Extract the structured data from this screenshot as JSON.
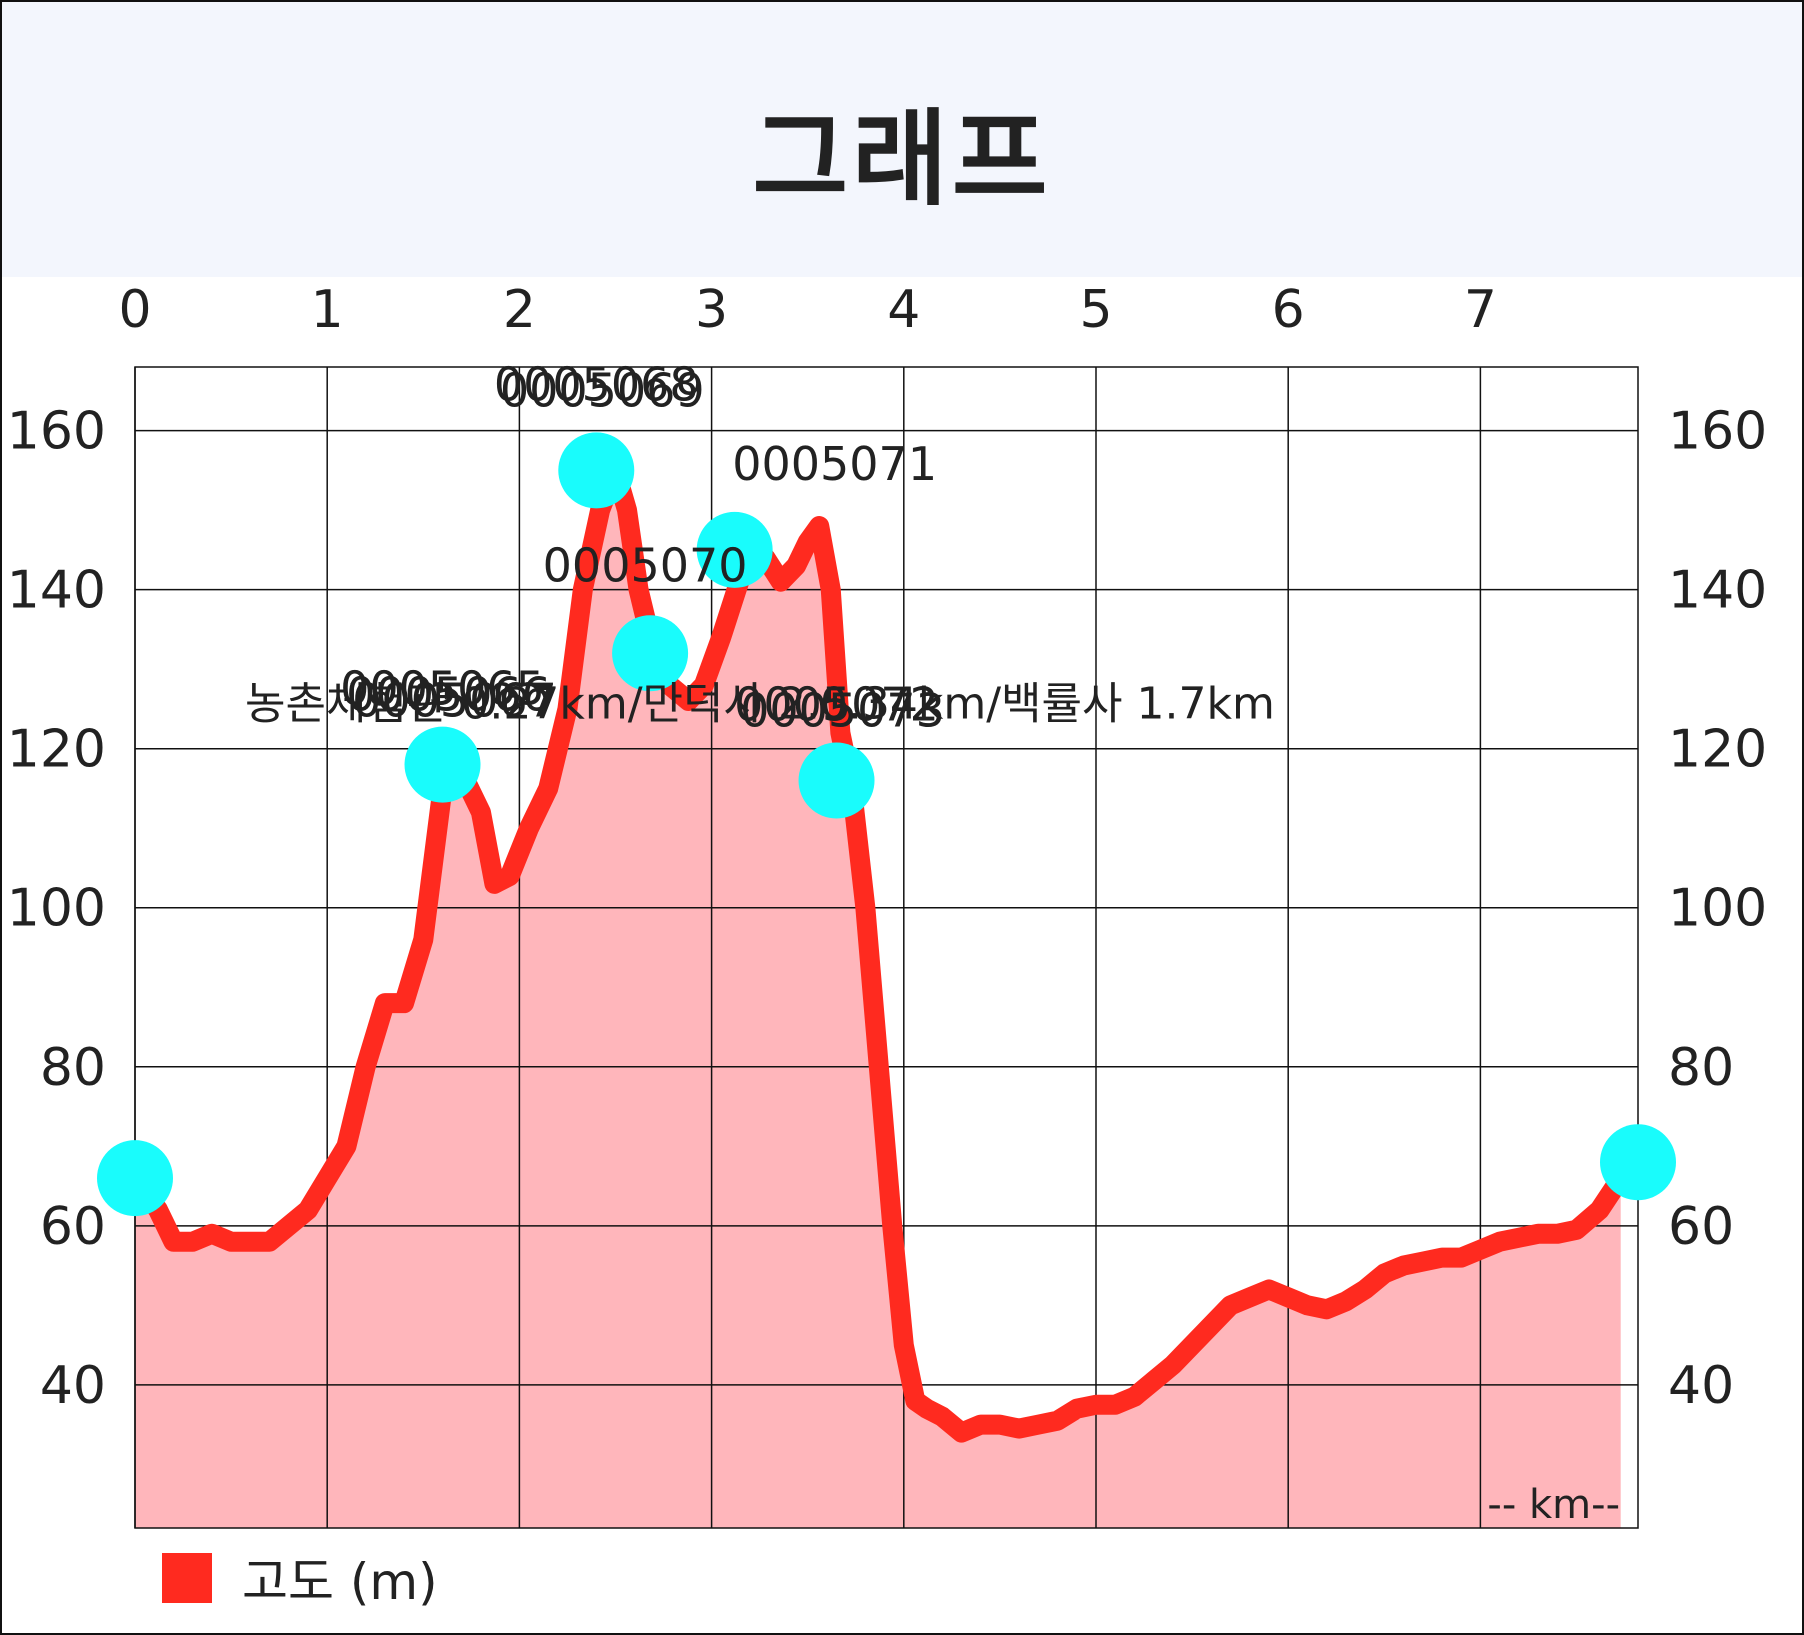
{
  "title": "그래프",
  "legend": {
    "label": "고도 (m)",
    "color": "#ff2a1f"
  },
  "colors": {
    "line": "#ff2a1f",
    "area": "#ffb6bb",
    "marker": "#19fcfc",
    "grid": "#111111",
    "text": "#222222"
  },
  "chart_data": {
    "type": "area",
    "series": [
      {
        "name": "고도 (m)",
        "points": [
          [
            0.0,
            66
          ],
          [
            0.12,
            62
          ],
          [
            0.2,
            58
          ],
          [
            0.3,
            58
          ],
          [
            0.4,
            59
          ],
          [
            0.5,
            58
          ],
          [
            0.6,
            58
          ],
          [
            0.7,
            58
          ],
          [
            0.8,
            60
          ],
          [
            0.9,
            62
          ],
          [
            1.0,
            66
          ],
          [
            1.1,
            70
          ],
          [
            1.2,
            80
          ],
          [
            1.3,
            88
          ],
          [
            1.4,
            88
          ],
          [
            1.5,
            96
          ],
          [
            1.6,
            115
          ],
          [
            1.7,
            117
          ],
          [
            1.8,
            112
          ],
          [
            1.87,
            103
          ],
          [
            1.95,
            104
          ],
          [
            2.05,
            110
          ],
          [
            2.15,
            115
          ],
          [
            2.25,
            125
          ],
          [
            2.33,
            140
          ],
          [
            2.42,
            150
          ],
          [
            2.5,
            155
          ],
          [
            2.56,
            150
          ],
          [
            2.62,
            140
          ],
          [
            2.7,
            132
          ],
          [
            2.78,
            128
          ],
          [
            2.88,
            126
          ],
          [
            2.96,
            128
          ],
          [
            3.05,
            134
          ],
          [
            3.13,
            140
          ],
          [
            3.2,
            145
          ],
          [
            3.28,
            144
          ],
          [
            3.36,
            141
          ],
          [
            3.44,
            143
          ],
          [
            3.5,
            146
          ],
          [
            3.56,
            148
          ],
          [
            3.62,
            140
          ],
          [
            3.67,
            122
          ],
          [
            3.73,
            115
          ],
          [
            3.8,
            100
          ],
          [
            3.87,
            80
          ],
          [
            3.94,
            60
          ],
          [
            4.0,
            45
          ],
          [
            4.06,
            38
          ],
          [
            4.12,
            37
          ],
          [
            4.2,
            36
          ],
          [
            4.3,
            34
          ],
          [
            4.4,
            35
          ],
          [
            4.5,
            35
          ],
          [
            4.6,
            34.5
          ],
          [
            4.7,
            35
          ],
          [
            4.8,
            35.5
          ],
          [
            4.9,
            37
          ],
          [
            5.0,
            37.5
          ],
          [
            5.1,
            37.5
          ],
          [
            5.2,
            38.5
          ],
          [
            5.3,
            40.5
          ],
          [
            5.4,
            42.5
          ],
          [
            5.5,
            45
          ],
          [
            5.6,
            47.5
          ],
          [
            5.7,
            50
          ],
          [
            5.8,
            51
          ],
          [
            5.9,
            52
          ],
          [
            6.0,
            51
          ],
          [
            6.1,
            50
          ],
          [
            6.2,
            49.5
          ],
          [
            6.3,
            50.5
          ],
          [
            6.4,
            52
          ],
          [
            6.5,
            54
          ],
          [
            6.6,
            55
          ],
          [
            6.7,
            55.5
          ],
          [
            6.8,
            56
          ],
          [
            6.9,
            56
          ],
          [
            7.0,
            57
          ],
          [
            7.1,
            58
          ],
          [
            7.2,
            58.5
          ],
          [
            7.3,
            59
          ],
          [
            7.4,
            59
          ],
          [
            7.5,
            59.5
          ],
          [
            7.62,
            62
          ],
          [
            7.73,
            66
          ]
        ]
      }
    ],
    "markers": [
      {
        "x": 0.0,
        "y": 66,
        "label": ""
      },
      {
        "x": 1.6,
        "y": 118,
        "label": "0005065"
      },
      {
        "x": 1.6,
        "y": 118,
        "label": "0005066"
      },
      {
        "x": 1.6,
        "y": 118,
        "label": "0005067"
      },
      {
        "x": 2.4,
        "y": 155,
        "label": "0005068"
      },
      {
        "x": 2.4,
        "y": 155,
        "label": "0005069"
      },
      {
        "x": 2.68,
        "y": 132,
        "label": "0005070"
      },
      {
        "x": 3.12,
        "y": 145,
        "label": "0005071"
      },
      {
        "x": 3.65,
        "y": 116,
        "label": "0005072"
      },
      {
        "x": 3.65,
        "y": 116,
        "label": "0005073"
      },
      {
        "x": 7.82,
        "y": 68,
        "label": ""
      }
    ],
    "annotations": [
      {
        "x": 1.6,
        "y": 118,
        "text": "농촌체험관 0.27km/만덕사 2.0.34km/백률사 1.7km"
      }
    ],
    "x_ticks": [
      0,
      1,
      2,
      3,
      4,
      5,
      6,
      7
    ],
    "y_ticks": [
      40,
      60,
      80,
      100,
      120,
      140,
      160
    ],
    "xlim": [
      0,
      7.82
    ],
    "ylim": [
      22,
      168
    ],
    "x_unit_label": "-- km--",
    "x_axis_position": "top",
    "y_axis": "both sides",
    "grid": true,
    "legend_position": "bottom-left"
  }
}
